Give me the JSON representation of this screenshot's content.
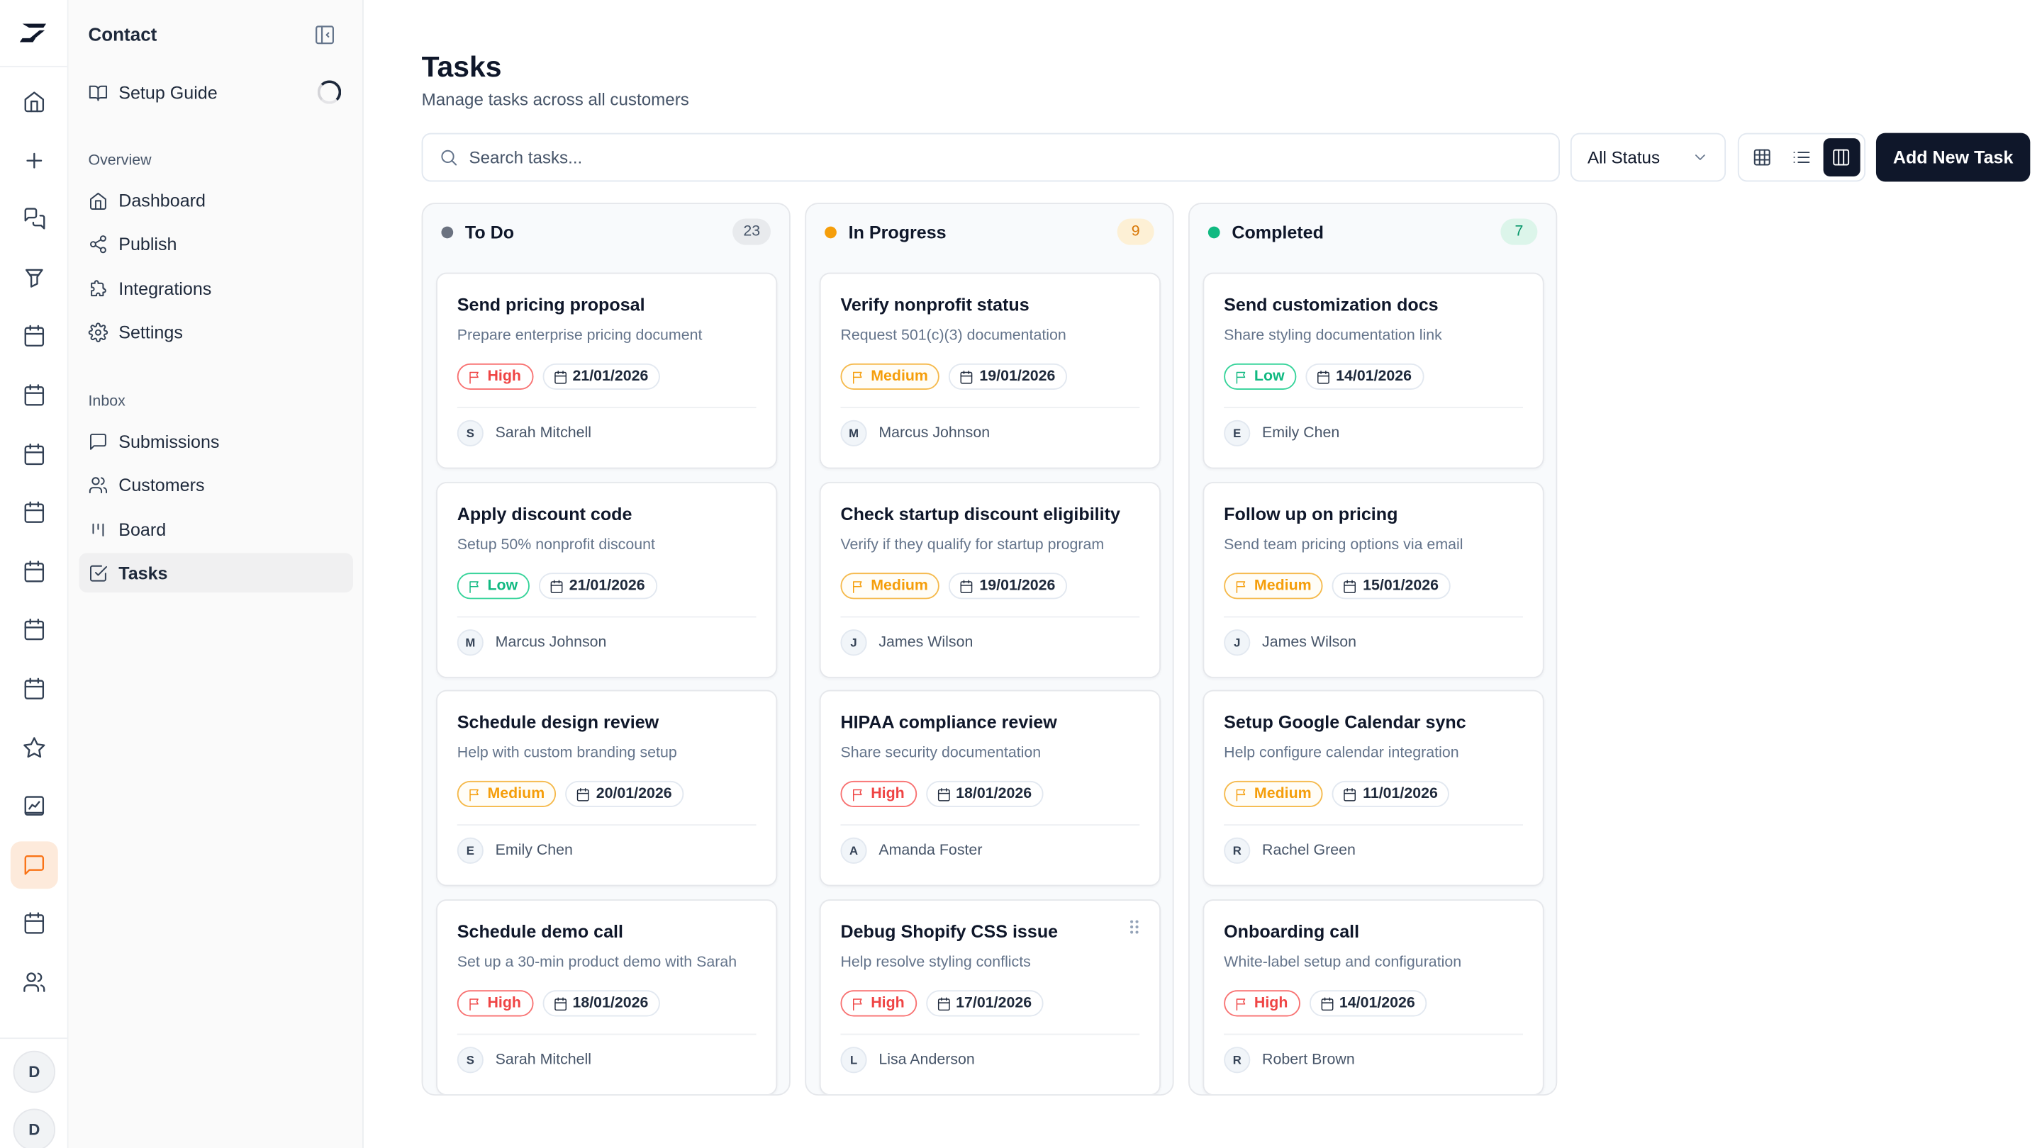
{
  "app": {
    "title": "Contact",
    "logo_icon": "brand-logo-icon"
  },
  "rail": {
    "items": [
      {
        "icon": "home-icon"
      },
      {
        "icon": "plus-icon"
      },
      {
        "icon": "messages-icon"
      },
      {
        "icon": "funnel-icon"
      },
      {
        "icon": "calendar-icon"
      },
      {
        "icon": "calendar-icon"
      },
      {
        "icon": "calendar-icon"
      },
      {
        "icon": "calendar-icon"
      },
      {
        "icon": "calendar-icon"
      },
      {
        "icon": "calendar-icon"
      },
      {
        "icon": "calendar-icon"
      },
      {
        "icon": "star-icon"
      },
      {
        "icon": "chart-icon"
      },
      {
        "icon": "chat-bubble-icon",
        "active": true
      },
      {
        "icon": "calendar-icon"
      },
      {
        "icon": "users-icon"
      }
    ],
    "avatars": [
      "D",
      "D"
    ]
  },
  "sidebar": {
    "setup_guide": "Setup Guide",
    "overview_label": "Overview",
    "overview": [
      "Dashboard",
      "Publish",
      "Integrations",
      "Settings"
    ],
    "inbox_label": "Inbox",
    "inbox": [
      "Submissions",
      "Customers",
      "Board",
      "Tasks"
    ],
    "active_item": "Tasks"
  },
  "page": {
    "title": "Tasks",
    "subtitle": "Manage tasks across all customers"
  },
  "toolbar": {
    "search_placeholder": "Search tasks...",
    "status_filter": "All Status",
    "views": [
      "grid-view",
      "list-view",
      "board-view"
    ],
    "active_view": "board-view",
    "add_button": "Add New Task"
  },
  "colors": {
    "todo": "#6b7280",
    "in_progress": "#f59e0b",
    "completed": "#10b981",
    "active_accent": "#f97316",
    "primary": "#0f172a"
  },
  "columns": [
    {
      "title": "To Do",
      "count": "23",
      "dot": "#6b7280",
      "count_bg": "#e8eaed",
      "count_fg": "#475569",
      "cards": [
        {
          "title": "Send pricing proposal",
          "desc": "Prepare enterprise pricing document",
          "priority": "High",
          "date": "21/01/2026",
          "initial": "S",
          "assignee": "Sarah Mitchell"
        },
        {
          "title": "Apply discount code",
          "desc": "Setup 50% nonprofit discount",
          "priority": "Low",
          "date": "21/01/2026",
          "initial": "M",
          "assignee": "Marcus Johnson"
        },
        {
          "title": "Schedule design review",
          "desc": "Help with custom branding setup",
          "priority": "Medium",
          "date": "20/01/2026",
          "initial": "E",
          "assignee": "Emily Chen"
        },
        {
          "title": "Schedule demo call",
          "desc": "Set up a 30-min product demo with Sarah",
          "priority": "High",
          "date": "18/01/2026",
          "initial": "S",
          "assignee": "Sarah Mitchell"
        }
      ]
    },
    {
      "title": "In Progress",
      "count": "9",
      "dot": "#f59e0b",
      "count_bg": "#fdf0d5",
      "count_fg": "#d97706",
      "cards": [
        {
          "title": "Verify nonprofit status",
          "desc": "Request 501(c)(3) documentation",
          "priority": "Medium",
          "date": "19/01/2026",
          "initial": "M",
          "assignee": "Marcus Johnson"
        },
        {
          "title": "Check startup discount eligibility",
          "desc": "Verify if they qualify for startup program",
          "priority": "Medium",
          "date": "19/01/2026",
          "initial": "J",
          "assignee": "James Wilson"
        },
        {
          "title": "HIPAA compliance review",
          "desc": "Share security documentation",
          "priority": "High",
          "date": "18/01/2026",
          "initial": "A",
          "assignee": "Amanda Foster"
        },
        {
          "title": "Debug Shopify CSS issue",
          "desc": "Help resolve styling conflicts",
          "priority": "High",
          "date": "17/01/2026",
          "initial": "L",
          "assignee": "Lisa Anderson",
          "drag_handle": "drag-handle-icon"
        }
      ]
    },
    {
      "title": "Completed",
      "count": "7",
      "dot": "#10b981",
      "count_bg": "#dcf5ea",
      "count_fg": "#059669",
      "cards": [
        {
          "title": "Send customization docs",
          "desc": "Share styling documentation link",
          "priority": "Low",
          "date": "14/01/2026",
          "initial": "E",
          "assignee": "Emily Chen"
        },
        {
          "title": "Follow up on pricing",
          "desc": "Send team pricing options via email",
          "priority": "Medium",
          "date": "15/01/2026",
          "initial": "J",
          "assignee": "James Wilson"
        },
        {
          "title": "Setup Google Calendar sync",
          "desc": "Help configure calendar integration",
          "priority": "Medium",
          "date": "11/01/2026",
          "initial": "R",
          "assignee": "Rachel Green"
        },
        {
          "title": "Onboarding call",
          "desc": "White-label setup and configuration",
          "priority": "High",
          "date": "14/01/2026",
          "initial": "R",
          "assignee": "Robert Brown"
        }
      ]
    }
  ]
}
